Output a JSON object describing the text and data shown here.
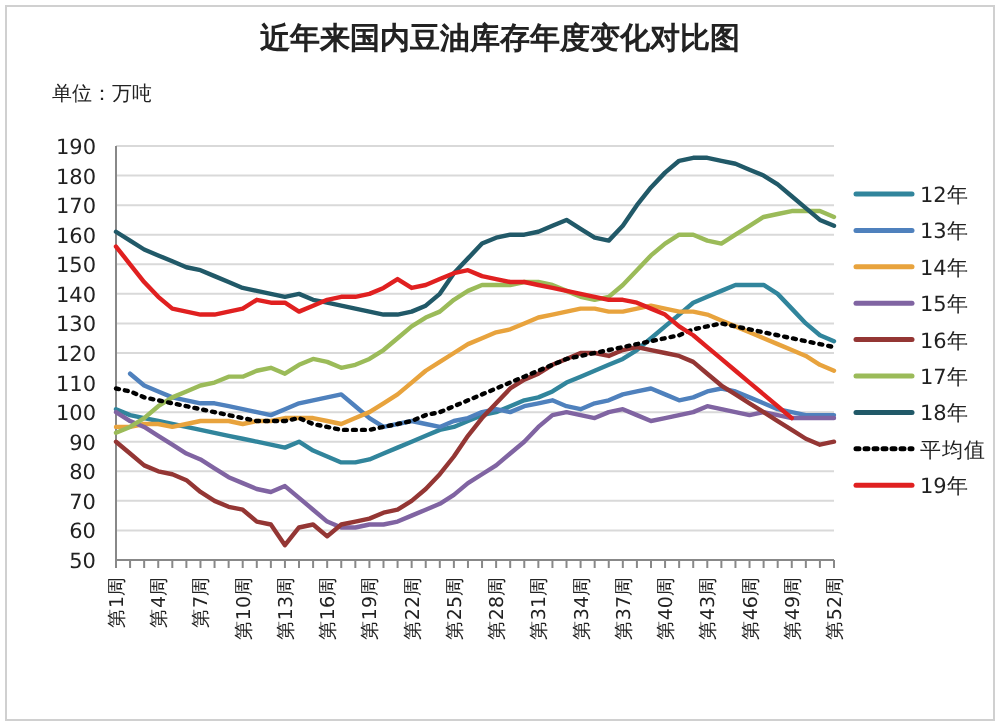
{
  "chart_data": {
    "type": "line",
    "title": "近年来国内豆油库存年度变化对比图",
    "ylabel": "单位：万吨",
    "categories": [
      "第1周",
      null,
      null,
      "第4周",
      null,
      null,
      "第7周",
      null,
      null,
      "第10周",
      null,
      null,
      "第13周",
      null,
      null,
      "第16周",
      null,
      null,
      "第19周",
      null,
      null,
      "第22周",
      null,
      null,
      "第25周",
      null,
      null,
      "第28周",
      null,
      null,
      "第31周",
      null,
      null,
      "第34周",
      null,
      null,
      "第37周",
      null,
      null,
      "第40周",
      null,
      null,
      "第43周",
      null,
      null,
      "第46周",
      null,
      null,
      "第49周",
      null,
      null,
      "第52周"
    ],
    "ylim": [
      50,
      190
    ],
    "yticks": [
      50,
      60,
      70,
      80,
      90,
      100,
      110,
      120,
      130,
      140,
      150,
      160,
      170,
      180,
      190
    ],
    "grid": "y",
    "legend": "right",
    "series": [
      {
        "name": "12年",
        "color": "#31859c",
        "values": [
          101,
          99,
          98,
          97,
          96,
          95,
          94,
          93,
          92,
          91,
          90,
          89,
          88,
          90,
          87,
          85,
          83,
          83,
          84,
          86,
          88,
          90,
          92,
          94,
          95,
          97,
          99,
          100,
          102,
          104,
          105,
          107,
          110,
          112,
          114,
          116,
          118,
          121,
          125,
          129,
          133,
          137,
          139,
          141,
          143,
          143,
          143,
          140,
          135,
          130,
          126,
          124
        ]
      },
      {
        "name": "13年",
        "color": "#4f81bd",
        "values": [
          null,
          113,
          109,
          107,
          105,
          104,
          103,
          103,
          102,
          101,
          100,
          99,
          101,
          103,
          104,
          105,
          106,
          102,
          98,
          95,
          96,
          97,
          96,
          95,
          97,
          98,
          100,
          101,
          100,
          102,
          103,
          104,
          102,
          101,
          103,
          104,
          106,
          107,
          108,
          106,
          104,
          105,
          107,
          108,
          107,
          105,
          103,
          101,
          100,
          99,
          99,
          99
        ]
      },
      {
        "name": "14年",
        "color": "#e8a33d",
        "values": [
          95,
          95,
          96,
          96,
          95,
          96,
          97,
          97,
          97,
          96,
          97,
          97,
          98,
          98,
          98,
          97,
          96,
          98,
          100,
          103,
          106,
          110,
          114,
          117,
          120,
          123,
          125,
          127,
          128,
          130,
          132,
          133,
          134,
          135,
          135,
          134,
          134,
          135,
          136,
          135,
          134,
          134,
          133,
          131,
          129,
          127,
          125,
          123,
          121,
          119,
          116,
          114
        ]
      },
      {
        "name": "15年",
        "color": "#8064a2",
        "values": [
          100,
          97,
          95,
          92,
          89,
          86,
          84,
          81,
          78,
          76,
          74,
          73,
          75,
          71,
          67,
          63,
          61,
          61,
          62,
          62,
          63,
          65,
          67,
          69,
          72,
          76,
          79,
          82,
          86,
          90,
          95,
          99,
          100,
          99,
          98,
          100,
          101,
          99,
          97,
          98,
          99,
          100,
          102,
          101,
          100,
          99,
          100,
          99,
          98,
          98,
          98,
          98
        ]
      },
      {
        "name": "16年",
        "color": "#943634",
        "values": [
          90,
          86,
          82,
          80,
          79,
          77,
          73,
          70,
          68,
          67,
          63,
          62,
          55,
          61,
          62,
          58,
          62,
          63,
          64,
          66,
          67,
          70,
          74,
          79,
          85,
          92,
          98,
          103,
          108,
          111,
          113,
          116,
          118,
          120,
          120,
          119,
          121,
          122,
          121,
          120,
          119,
          117,
          113,
          109,
          106,
          103,
          100,
          97,
          94,
          91,
          89,
          90
        ]
      },
      {
        "name": "17年",
        "color": "#9bbb59",
        "values": [
          93,
          95,
          98,
          102,
          105,
          107,
          109,
          110,
          112,
          112,
          114,
          115,
          113,
          116,
          118,
          117,
          115,
          116,
          118,
          121,
          125,
          129,
          132,
          134,
          138,
          141,
          143,
          143,
          143,
          144,
          144,
          143,
          141,
          139,
          138,
          139,
          143,
          148,
          153,
          157,
          160,
          160,
          158,
          157,
          160,
          163,
          166,
          167,
          168,
          168,
          168,
          166
        ]
      },
      {
        "name": "18年",
        "color": "#215968",
        "values": [
          161,
          158,
          155,
          153,
          151,
          149,
          148,
          146,
          144,
          142,
          141,
          140,
          139,
          140,
          138,
          137,
          136,
          135,
          134,
          133,
          133,
          134,
          136,
          140,
          147,
          152,
          157,
          159,
          160,
          160,
          161,
          163,
          165,
          162,
          159,
          158,
          163,
          170,
          176,
          181,
          185,
          186,
          186,
          185,
          184,
          182,
          180,
          177,
          173,
          169,
          165,
          163
        ]
      },
      {
        "name": "平均值",
        "color": "#000000",
        "line_style": "dotted",
        "values": [
          108,
          107,
          105,
          104,
          103,
          102,
          101,
          100,
          99,
          98,
          97,
          97,
          97,
          98,
          96,
          95,
          94,
          94,
          94,
          95,
          96,
          97,
          99,
          100,
          102,
          104,
          106,
          108,
          110,
          112,
          114,
          116,
          118,
          119,
          120,
          121,
          122,
          123,
          124,
          125,
          126,
          128,
          129,
          130,
          129,
          128,
          127,
          126,
          125,
          124,
          123,
          122
        ]
      },
      {
        "name": "19年",
        "color": "#e02020",
        "values": [
          156,
          150,
          144,
          139,
          135,
          134,
          133,
          133,
          134,
          135,
          138,
          137,
          137,
          134,
          136,
          138,
          139,
          139,
          140,
          142,
          145,
          142,
          143,
          145,
          147,
          148,
          146,
          145,
          144,
          144,
          143,
          142,
          141,
          140,
          139,
          138,
          138,
          137,
          135,
          133,
          129,
          126,
          122,
          118,
          114,
          110,
          106,
          102,
          98,
          null,
          null,
          null
        ]
      }
    ]
  }
}
